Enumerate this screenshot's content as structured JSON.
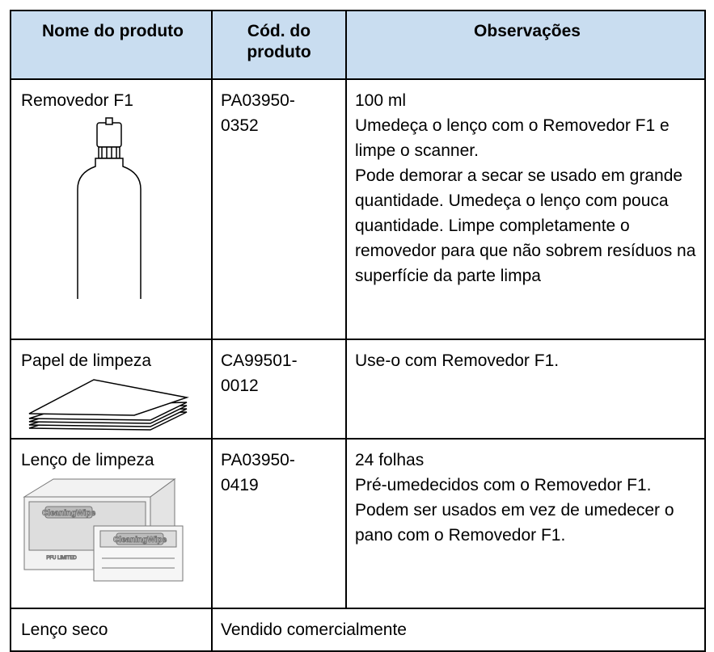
{
  "table": {
    "header": [
      "Nome do produto",
      "Cód. do produto",
      "Observações"
    ],
    "rows": [
      {
        "name": "Removedor F1",
        "code": "PA03950-0352",
        "notes": [
          "100 ml",
          "Umedeça o lenço com o Removedor F1 e limpe o scanner.",
          "Pode demorar a secar se usado em grande quantidade. Umedeça o lenço com pouca quantidade. Limpe completamente o removedor para que não sobrem resíduos na superfície da parte limpa"
        ]
      },
      {
        "name": "Papel de limpeza",
        "code": "CA99501-0012",
        "notes": [
          "Use-o com Removedor F1."
        ]
      },
      {
        "name": "Lenço de limpeza",
        "code": "PA03950-0419",
        "notes": [
          "24 folhas",
          "Pré-umedecidos com o Removedor F1. Podem ser usados em vez de umedecer o pano com o Removedor F1."
        ],
        "image_texts": [
          "CleaningWipe",
          "PFU LIMITED"
        ]
      },
      {
        "name": "Lenço seco",
        "notes": [
          "Vendido comercialmente"
        ]
      }
    ]
  }
}
